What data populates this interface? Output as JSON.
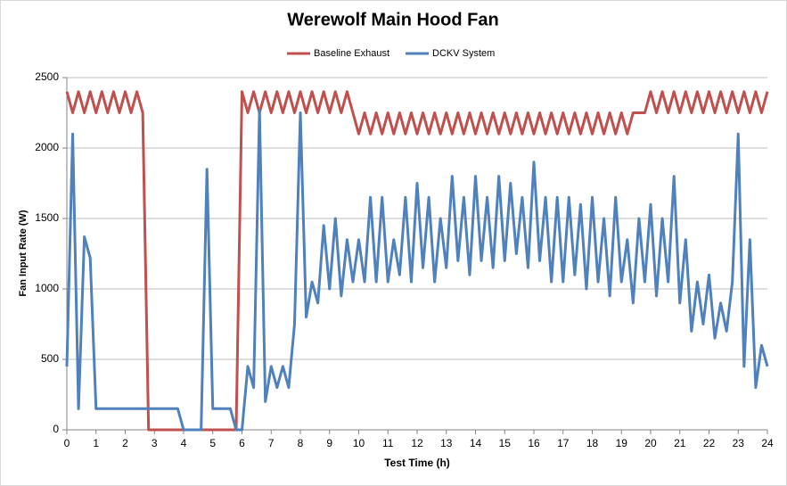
{
  "chart_data": {
    "type": "line",
    "title": "Werewolf Main Hood Fan",
    "xlabel": "Test Time (h)",
    "ylabel": "Fan Input Rate (W)",
    "xlim": [
      0,
      24
    ],
    "xticks": [
      0,
      1,
      2,
      3,
      4,
      5,
      6,
      7,
      8,
      9,
      10,
      11,
      12,
      13,
      14,
      15,
      16,
      17,
      18,
      19,
      20,
      21,
      22,
      23,
      24
    ],
    "ylim": [
      0,
      2500
    ],
    "yticks": [
      0,
      500,
      1000,
      1500,
      2000,
      2500
    ],
    "grid": true,
    "legend": "top",
    "x": [
      0,
      0.2,
      0.4,
      0.6,
      0.8,
      1,
      1.2,
      1.4,
      1.6,
      1.8,
      2,
      2.2,
      2.4,
      2.6,
      2.8,
      3,
      3.2,
      3.4,
      3.6,
      3.8,
      4,
      4.2,
      4.4,
      4.6,
      4.8,
      5,
      5.2,
      5.4,
      5.6,
      5.8,
      6,
      6.2,
      6.4,
      6.6,
      6.8,
      7,
      7.2,
      7.4,
      7.6,
      7.8,
      8,
      8.2,
      8.4,
      8.6,
      8.8,
      9,
      9.2,
      9.4,
      9.6,
      9.8,
      10,
      10.2,
      10.4,
      10.6,
      10.8,
      11,
      11.2,
      11.4,
      11.6,
      11.8,
      12,
      12.2,
      12.4,
      12.6,
      12.8,
      13,
      13.2,
      13.4,
      13.6,
      13.8,
      14,
      14.2,
      14.4,
      14.6,
      14.8,
      15,
      15.2,
      15.4,
      15.6,
      15.8,
      16,
      16.2,
      16.4,
      16.6,
      16.8,
      17,
      17.2,
      17.4,
      17.6,
      17.8,
      18,
      18.2,
      18.4,
      18.6,
      18.8,
      19,
      19.2,
      19.4,
      19.6,
      19.8,
      20,
      20.2,
      20.4,
      20.6,
      20.8,
      21,
      21.2,
      21.4,
      21.6,
      21.8,
      22,
      22.2,
      22.4,
      22.6,
      22.8,
      23,
      23.2,
      23.4,
      23.6,
      23.8,
      24
    ],
    "series": [
      {
        "name": "Baseline Exhaust",
        "color": "#c0504d",
        "values": [
          2400,
          2250,
          2400,
          2250,
          2400,
          2250,
          2400,
          2250,
          2400,
          2250,
          2400,
          2250,
          2400,
          2250,
          0,
          0,
          0,
          0,
          0,
          0,
          0,
          0,
          0,
          0,
          0,
          0,
          0,
          0,
          0,
          0,
          2400,
          2250,
          2400,
          2250,
          2400,
          2250,
          2400,
          2250,
          2400,
          2250,
          2400,
          2250,
          2400,
          2250,
          2400,
          2250,
          2400,
          2250,
          2400,
          2250,
          2100,
          2250,
          2100,
          2250,
          2100,
          2250,
          2100,
          2250,
          2100,
          2250,
          2100,
          2250,
          2100,
          2250,
          2100,
          2250,
          2100,
          2250,
          2100,
          2250,
          2100,
          2250,
          2100,
          2250,
          2100,
          2250,
          2100,
          2250,
          2100,
          2250,
          2100,
          2250,
          2100,
          2250,
          2100,
          2250,
          2100,
          2250,
          2100,
          2250,
          2100,
          2250,
          2100,
          2250,
          2100,
          2250,
          2100,
          2250,
          2250,
          2250,
          2400,
          2250,
          2400,
          2250,
          2400,
          2250,
          2400,
          2250,
          2400,
          2250,
          2400,
          2250,
          2400,
          2250,
          2400,
          2250,
          2400,
          2250,
          2400,
          2250,
          2400
        ]
      },
      {
        "name": "DCKV System",
        "color": "#4f81bd",
        "values": [
          450,
          2100,
          150,
          1370,
          1220,
          150,
          150,
          150,
          150,
          150,
          150,
          150,
          150,
          150,
          150,
          150,
          150,
          150,
          150,
          150,
          0,
          0,
          0,
          0,
          1850,
          150,
          150,
          150,
          150,
          0,
          0,
          450,
          300,
          2270,
          200,
          450,
          300,
          450,
          300,
          750,
          2250,
          800,
          1050,
          900,
          1450,
          1000,
          1500,
          950,
          1350,
          1050,
          1350,
          1050,
          1650,
          1050,
          1650,
          1050,
          1350,
          1100,
          1650,
          1050,
          1750,
          1150,
          1650,
          1050,
          1500,
          1150,
          1800,
          1200,
          1650,
          1100,
          1800,
          1200,
          1650,
          1150,
          1800,
          1200,
          1750,
          1250,
          1650,
          1150,
          1900,
          1200,
          1650,
          1050,
          1650,
          1050,
          1650,
          1100,
          1600,
          1000,
          1650,
          1050,
          1500,
          950,
          1650,
          1050,
          1350,
          900,
          1500,
          1050,
          1600,
          950,
          1500,
          1050,
          1800,
          900,
          1350,
          700,
          1050,
          750,
          1100,
          650,
          900,
          700,
          1050,
          2100,
          450,
          1350,
          300,
          600,
          450
        ]
      }
    ]
  }
}
